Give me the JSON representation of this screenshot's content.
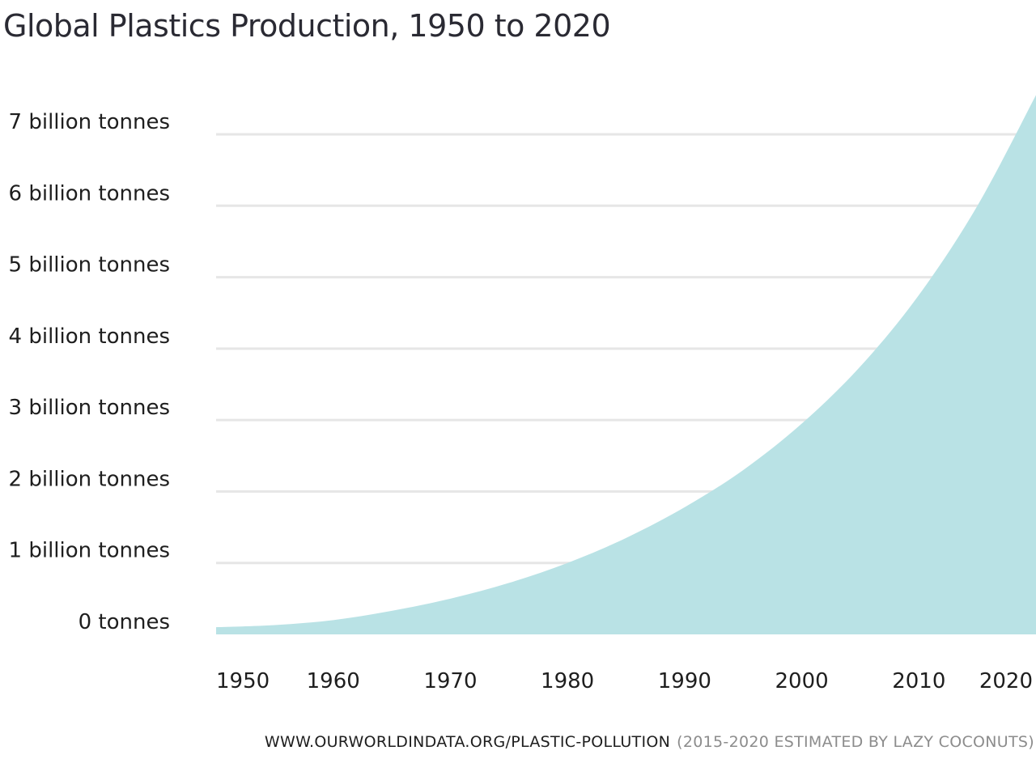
{
  "title": "Global Plastics Production, 1950 to 2020",
  "source": {
    "url": "WWW.OURWORLDINDATA.ORG/PLASTIC-POLLUTION",
    "note": "(2015-2020 ESTIMATED BY LAZY COCONUTS)"
  },
  "colors": {
    "area": "#b9e2e5",
    "grid": "#e6e6e6"
  },
  "chart_data": {
    "type": "area",
    "title": "Global Plastics Production, 1950 to 2020",
    "xlabel": "",
    "ylabel": "",
    "xlim": [
      1950,
      2020
    ],
    "ylim": [
      0,
      7
    ],
    "grid": true,
    "y_ticks": [
      {
        "value": 0,
        "label": "0 tonnes"
      },
      {
        "value": 1,
        "label": "1 billion tonnes"
      },
      {
        "value": 2,
        "label": "2 billion tonnes"
      },
      {
        "value": 3,
        "label": "3 billion tonnes"
      },
      {
        "value": 4,
        "label": "4 billion tonnes"
      },
      {
        "value": 5,
        "label": "5 billion tonnes"
      },
      {
        "value": 6,
        "label": "6 billion tonnes"
      },
      {
        "value": 7,
        "label": "7 billion tonnes"
      }
    ],
    "x_ticks": [
      {
        "value": 1950,
        "label": "1950"
      },
      {
        "value": 1960,
        "label": "1960"
      },
      {
        "value": 1970,
        "label": "1970"
      },
      {
        "value": 1980,
        "label": "1980"
      },
      {
        "value": 1990,
        "label": "1990"
      },
      {
        "value": 2000,
        "label": "2000"
      },
      {
        "value": 2010,
        "label": "2010"
      },
      {
        "value": 2020,
        "label": "2020"
      }
    ],
    "series": [
      {
        "x": [
          1950,
          1955,
          1960,
          1965,
          1970,
          1975,
          1980,
          1985,
          1990,
          1995,
          2000,
          2005,
          2010,
          2015,
          2020
        ],
        "values": [
          0.1,
          0.13,
          0.2,
          0.33,
          0.5,
          0.72,
          1.0,
          1.35,
          1.78,
          2.3,
          2.95,
          3.75,
          4.75,
          6.0,
          7.55
        ]
      }
    ]
  }
}
